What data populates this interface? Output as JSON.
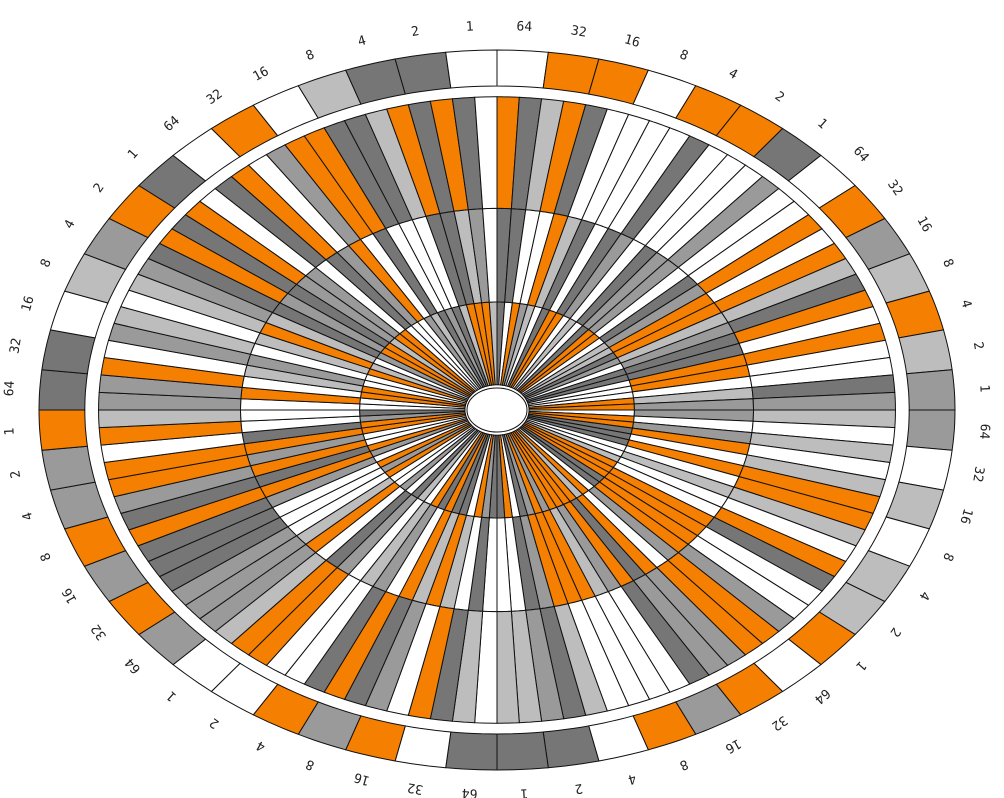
{
  "ring": {
    "groups": [
      {
        "bits": [
          64,
          32,
          16,
          8,
          4,
          2,
          1
        ]
      },
      {
        "bits": [
          64,
          32,
          16,
          8,
          4,
          2,
          1
        ]
      },
      {
        "bits": [
          64,
          32,
          16,
          8,
          4,
          2,
          1
        ]
      },
      {
        "bits": [
          64,
          32,
          16,
          8,
          4,
          2,
          1
        ]
      },
      {
        "bits": [
          64,
          32,
          16,
          8,
          4,
          2,
          1
        ]
      },
      {
        "bits": [
          64,
          32,
          16,
          8,
          4,
          2,
          1
        ]
      },
      {
        "bits": [
          64,
          32,
          16,
          8,
          4,
          2,
          1
        ]
      },
      {
        "bits": [
          64,
          32,
          16,
          8,
          4,
          2,
          1
        ]
      }
    ]
  }
}
